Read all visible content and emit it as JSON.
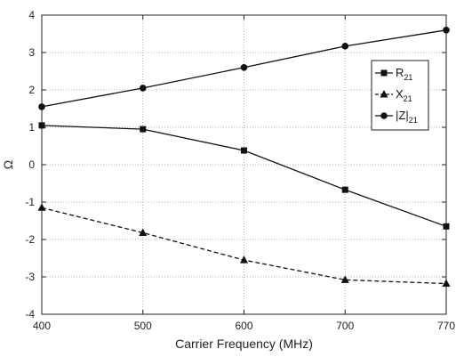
{
  "chart_data": {
    "type": "line",
    "x": [
      400,
      500,
      600,
      700,
      770
    ],
    "xticks": [
      "400",
      "500",
      "600",
      "700",
      "770"
    ],
    "xlim": [
      400,
      770
    ],
    "ylim": [
      -4,
      4
    ],
    "yticks": [
      "-4",
      "-3",
      "-2",
      "-1",
      "0",
      "1",
      "2",
      "3",
      "4"
    ],
    "xlabel": "Carrier Frequency (MHz)",
    "ylabel": "Ω",
    "grid": true,
    "legend_position": "top-right",
    "series": [
      {
        "name": "R",
        "subscript": "21",
        "marker": "square",
        "dash": "solid",
        "color": "#111111",
        "values": [
          1.05,
          0.95,
          0.38,
          -0.67,
          -1.65
        ]
      },
      {
        "name": "X",
        "subscript": "21",
        "marker": "triangle",
        "dash": "dashed",
        "color": "#111111",
        "values": [
          -1.15,
          -1.82,
          -2.55,
          -3.08,
          -3.18
        ]
      },
      {
        "name": "|Z|",
        "subscript": "21",
        "marker": "circle",
        "dash": "solid",
        "color": "#111111",
        "values": [
          1.55,
          2.05,
          2.6,
          3.17,
          3.6
        ]
      }
    ]
  }
}
